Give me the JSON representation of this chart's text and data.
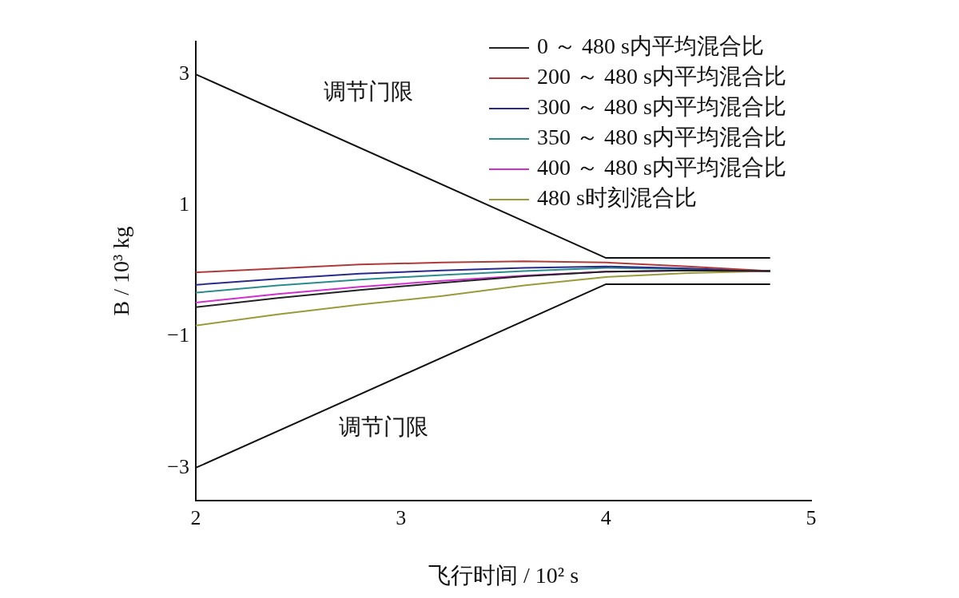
{
  "chart_data": {
    "type": "line",
    "xlabel": "飞行时间 / 10² s",
    "ylabel": "B / 10³ kg",
    "xlim": [
      2,
      5
    ],
    "ylim": [
      -3.5,
      3.5
    ],
    "xticks": [
      2,
      3,
      4,
      5
    ],
    "yticks": [
      {
        "value": -3,
        "label": "−3"
      },
      {
        "value": -1,
        "label": "−1"
      },
      1,
      3
    ],
    "grid": false,
    "legend": "top right",
    "x": [
      2,
      2.4,
      2.8,
      3.2,
      3.6,
      4.0,
      4.4,
      4.8
    ],
    "series": [
      {
        "name": "0 ～ 480 s内平均混合比",
        "color": "#222222",
        "values": [
          -0.55,
          -0.41,
          -0.29,
          -0.18,
          -0.08,
          -0.01,
          0.01,
          0
        ]
      },
      {
        "name": "200 ～ 480 s内平均混合比",
        "color": "#b03a3a",
        "values": [
          -0.02,
          0.04,
          0.1,
          0.13,
          0.15,
          0.13,
          0.07,
          0
        ]
      },
      {
        "name": "300 ～ 480 s内平均混合比",
        "color": "#2a2a8c",
        "values": [
          -0.21,
          -0.12,
          -0.04,
          0.01,
          0.05,
          0.07,
          0.04,
          0
        ]
      },
      {
        "name": "350 ～ 480 s内平均混合比",
        "color": "#2a8c8c",
        "values": [
          -0.33,
          -0.22,
          -0.13,
          -0.06,
          0,
          0.05,
          0.03,
          0
        ]
      },
      {
        "name": "400 ～ 480 s内平均混合比",
        "color": "#d030d0",
        "values": [
          -0.48,
          -0.35,
          -0.24,
          -0.15,
          -0.07,
          -0.01,
          0.01,
          0
        ]
      },
      {
        "name": "480 s时刻混合比",
        "color": "#9a9a3a",
        "values": [
          -0.83,
          -0.66,
          -0.51,
          -0.38,
          -0.22,
          -0.09,
          -0.03,
          0
        ]
      },
      {
        "color": "#111111",
        "x": [
          2,
          4,
          4.8
        ],
        "values": [
          3,
          0.2,
          0.2
        ]
      },
      {
        "color": "#111111",
        "x": [
          2,
          4,
          4.8
        ],
        "values": [
          -3,
          -0.2,
          -0.2
        ]
      }
    ],
    "annotations": [
      "调节门限",
      "调节门限"
    ]
  }
}
